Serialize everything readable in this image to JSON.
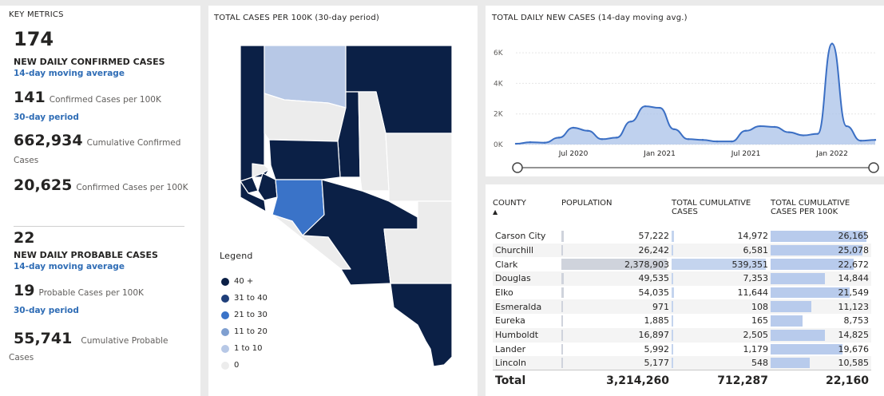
{
  "metrics": {
    "title": "KEY METRICS",
    "confirmed_daily": "174",
    "confirmed_daily_label": "NEW DAILY CONFIRMED CASES",
    "confirmed_daily_sub": "14-day moving average",
    "confirmed_per100k": "141",
    "confirmed_per100k_label": "Confirmed Cases per 100K",
    "confirmed_per100k_sub": "30-day period",
    "cumulative_confirmed": "662,934",
    "cumulative_confirmed_label_a": "Cumulative Confirmed",
    "cumulative_confirmed_label_b": "Cases",
    "cumulative_per100k": "20,625",
    "cumulative_per100k_label": "Confirmed Cases per 100K",
    "probable_daily": "22",
    "probable_daily_label": "NEW DAILY PROBABLE CASES",
    "probable_daily_sub": "14-day moving average",
    "probable_per100k": "19",
    "probable_per100k_label": "Probable Cases per 100K",
    "probable_per100k_sub": "30-day period",
    "cumulative_probable": "55,741",
    "cumulative_probable_label_a": "Cumulative Probable",
    "cumulative_probable_label_b": "Cases"
  },
  "map": {
    "title": "TOTAL CASES PER 100K (30-day period)",
    "legend_title": "Legend",
    "legend": [
      {
        "label": "40 +",
        "color": "#0b2046"
      },
      {
        "label": "31 to 40",
        "color": "#1f3f7a"
      },
      {
        "label": "21 to 30",
        "color": "#3a73c8"
      },
      {
        "label": "11 to 20",
        "color": "#7f9fd0"
      },
      {
        "label": "1 to 10",
        "color": "#b7c8e6"
      },
      {
        "label": "0",
        "color": "#ececec"
      }
    ]
  },
  "chart_data": {
    "type": "area",
    "title": "TOTAL DAILY NEW CASES (14-day moving avg.)",
    "x_ticks": [
      "Jul 2020",
      "Jan 2021",
      "Jul 2021",
      "Jan 2022"
    ],
    "y_ticks": [
      "0K",
      "2K",
      "4K",
      "6K"
    ],
    "ylim": [
      0,
      7000
    ],
    "x": [
      "2020-03",
      "2020-04",
      "2020-05",
      "2020-06",
      "2020-07",
      "2020-08",
      "2020-09",
      "2020-10",
      "2020-11",
      "2020-12",
      "2021-01",
      "2021-02",
      "2021-03",
      "2021-04",
      "2021-05",
      "2021-06",
      "2021-07",
      "2021-08",
      "2021-09",
      "2021-10",
      "2021-11",
      "2021-12",
      "2022-01",
      "2022-02",
      "2022-03",
      "2022-04"
    ],
    "values": [
      50,
      150,
      120,
      450,
      1100,
      900,
      350,
      450,
      1500,
      2500,
      2400,
      1000,
      350,
      300,
      200,
      200,
      900,
      1200,
      1150,
      800,
      600,
      700,
      6600,
      1200,
      250,
      300
    ],
    "grid": true,
    "color": "#3b6fc4"
  },
  "table": {
    "headers": [
      "COUNTY",
      "POPULATION",
      "TOTAL CUMULATIVE CASES",
      "TOTAL CUMULATIVE CASES PER 100K"
    ],
    "rows": [
      {
        "county": "Carson City",
        "population": "57,222",
        "cases": "14,972",
        "per100k": "26,165",
        "pop_frac": 0.024,
        "cases_frac": 0.028,
        "per_frac": 1.0
      },
      {
        "county": "Churchill",
        "population": "26,242",
        "cases": "6,581",
        "per100k": "25,078",
        "pop_frac": 0.011,
        "cases_frac": 0.012,
        "per_frac": 0.958
      },
      {
        "county": "Clark",
        "population": "2,378,903",
        "cases": "539,351",
        "per100k": "22,672",
        "pop_frac": 1.0,
        "cases_frac": 1.0,
        "per_frac": 0.867
      },
      {
        "county": "Douglas",
        "population": "49,535",
        "cases": "7,353",
        "per100k": "14,844",
        "pop_frac": 0.021,
        "cases_frac": 0.014,
        "per_frac": 0.567
      },
      {
        "county": "Elko",
        "population": "54,035",
        "cases": "11,644",
        "per100k": "21,549",
        "pop_frac": 0.023,
        "cases_frac": 0.022,
        "per_frac": 0.824
      },
      {
        "county": "Esmeralda",
        "population": "971",
        "cases": "108",
        "per100k": "11,123",
        "pop_frac": 0.0004,
        "cases_frac": 0.0002,
        "per_frac": 0.425
      },
      {
        "county": "Eureka",
        "population": "1,885",
        "cases": "165",
        "per100k": "8,753",
        "pop_frac": 0.0008,
        "cases_frac": 0.0003,
        "per_frac": 0.335
      },
      {
        "county": "Humboldt",
        "population": "16,897",
        "cases": "2,505",
        "per100k": "14,825",
        "pop_frac": 0.007,
        "cases_frac": 0.005,
        "per_frac": 0.567
      },
      {
        "county": "Lander",
        "population": "5,992",
        "cases": "1,179",
        "per100k": "19,676",
        "pop_frac": 0.0025,
        "cases_frac": 0.002,
        "per_frac": 0.752
      },
      {
        "county": "Lincoln",
        "population": "5,177",
        "cases": "548",
        "per100k": "10,585",
        "pop_frac": 0.002,
        "cases_frac": 0.001,
        "per_frac": 0.405
      }
    ],
    "total_label": "Total",
    "total_population": "3,214,260",
    "total_cases": "712,287",
    "total_per100k": "22,160"
  }
}
